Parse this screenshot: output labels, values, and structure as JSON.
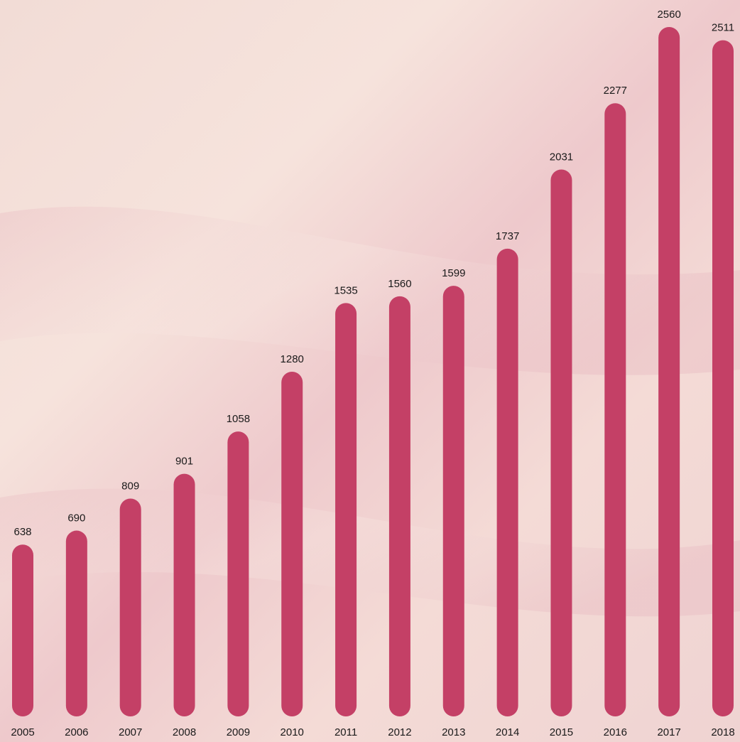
{
  "chart_data": {
    "type": "bar",
    "categories": [
      "2005",
      "2006",
      "2007",
      "2008",
      "2009",
      "2010",
      "2011",
      "2012",
      "2013",
      "2014",
      "2015",
      "2016",
      "2017",
      "2018"
    ],
    "values": [
      638,
      690,
      809,
      901,
      1058,
      1280,
      1535,
      1560,
      1599,
      1737,
      2031,
      2277,
      2560,
      2511
    ],
    "color": "#c44066"
  }
}
